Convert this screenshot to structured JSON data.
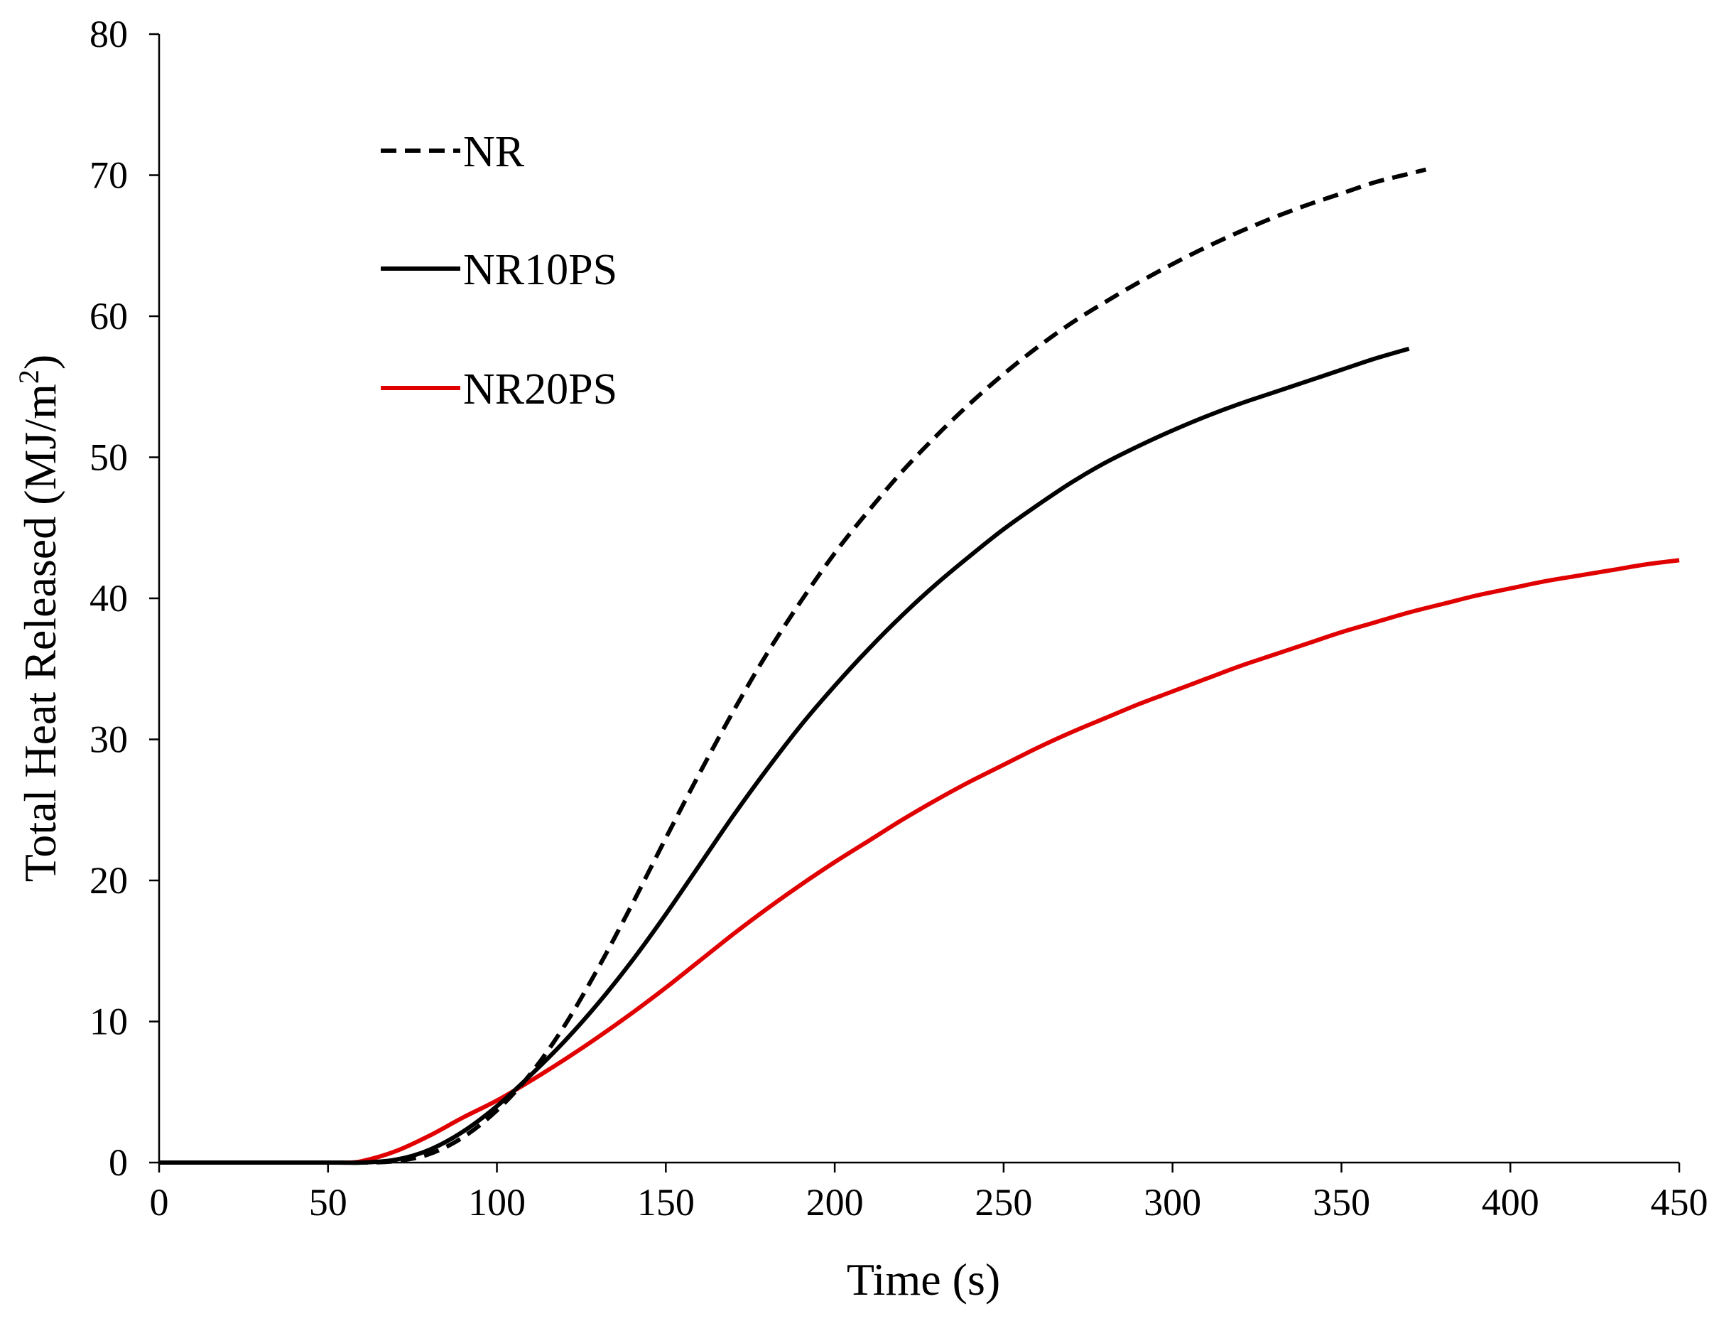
{
  "chart_data": {
    "type": "line",
    "title": "",
    "xlabel": "Time (s)",
    "ylabel": "Total Heat Released (MJ/m",
    "ylabel_sup": "2",
    "ylabel_close": ")",
    "xlim": [
      0,
      450
    ],
    "ylim": [
      0,
      80
    ],
    "xticks": [
      0,
      50,
      100,
      150,
      200,
      250,
      300,
      350,
      400,
      450
    ],
    "yticks": [
      0,
      10,
      20,
      30,
      40,
      50,
      60,
      70,
      80
    ],
    "grid": false,
    "legend_position": "top-left",
    "series": [
      {
        "name": "NR",
        "color": "#000000",
        "dash": "dashed",
        "x": [
          0,
          50,
          60,
          70,
          80,
          90,
          100,
          110,
          120,
          130,
          140,
          150,
          160,
          170,
          180,
          190,
          200,
          210,
          220,
          230,
          240,
          250,
          260,
          270,
          280,
          290,
          300,
          310,
          320,
          330,
          340,
          350,
          360,
          370,
          375
        ],
        "y": [
          0,
          0,
          0,
          0.1,
          0.6,
          1.8,
          3.7,
          6.3,
          9.7,
          13.8,
          18.3,
          23.0,
          27.6,
          32.0,
          36.1,
          39.8,
          43.2,
          46.2,
          49.0,
          51.5,
          53.8,
          55.9,
          57.8,
          59.5,
          61.0,
          62.4,
          63.7,
          64.9,
          66.0,
          67.0,
          67.9,
          68.7,
          69.5,
          70.1,
          70.4
        ]
      },
      {
        "name": "NR10PS",
        "color": "#000000",
        "dash": "solid",
        "x": [
          0,
          50,
          60,
          70,
          80,
          90,
          100,
          110,
          120,
          130,
          140,
          150,
          160,
          170,
          180,
          190,
          200,
          210,
          220,
          230,
          240,
          250,
          260,
          270,
          280,
          290,
          300,
          310,
          320,
          330,
          340,
          350,
          360,
          370
        ],
        "y": [
          0,
          0,
          0,
          0.2,
          0.9,
          2.2,
          4.0,
          6.2,
          8.6,
          11.3,
          14.3,
          17.6,
          21.1,
          24.6,
          27.9,
          31.0,
          33.8,
          36.4,
          38.8,
          41.0,
          43.0,
          44.9,
          46.6,
          48.2,
          49.6,
          50.8,
          51.9,
          52.9,
          53.8,
          54.6,
          55.4,
          56.2,
          57.0,
          57.7
        ]
      },
      {
        "name": "NR20PS",
        "color": "#e00000",
        "dash": "solid",
        "x": [
          0,
          50,
          55,
          60,
          70,
          80,
          90,
          100,
          110,
          120,
          130,
          140,
          150,
          160,
          170,
          180,
          190,
          200,
          210,
          220,
          230,
          240,
          250,
          260,
          270,
          280,
          290,
          300,
          310,
          320,
          330,
          340,
          350,
          360,
          370,
          380,
          390,
          400,
          410,
          420,
          430,
          440,
          450
        ],
        "y": [
          0,
          0,
          0,
          0.1,
          0.8,
          1.9,
          3.2,
          4.4,
          5.8,
          7.3,
          8.9,
          10.6,
          12.4,
          14.3,
          16.2,
          18.0,
          19.7,
          21.3,
          22.8,
          24.3,
          25.7,
          27.0,
          28.2,
          29.4,
          30.5,
          31.5,
          32.5,
          33.4,
          34.3,
          35.2,
          36.0,
          36.8,
          37.6,
          38.3,
          39.0,
          39.6,
          40.2,
          40.7,
          41.2,
          41.6,
          42.0,
          42.4,
          42.7
        ]
      }
    ]
  }
}
